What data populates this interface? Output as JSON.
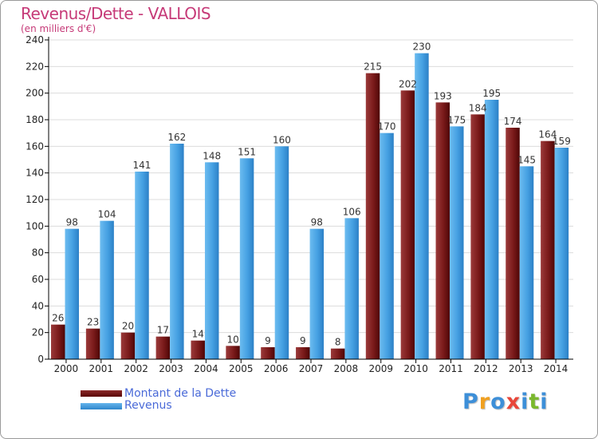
{
  "title": "Revenus/Dette - VALLOIS",
  "subtitle": "(en milliers d'€)",
  "legend": {
    "debt_label": "Montant de la Dette",
    "revenue_label": "Revenus"
  },
  "brand": "Proxiti",
  "colors": {
    "title": "#c63a78",
    "debt": "#7a1a1a",
    "revenue": "#3d98dd",
    "legend_text": "#4a6ad8"
  },
  "chart_data": {
    "type": "bar",
    "categories": [
      "2000",
      "2001",
      "2002",
      "2003",
      "2004",
      "2005",
      "2006",
      "2007",
      "2008",
      "2009",
      "2010",
      "2011",
      "2012",
      "2013",
      "2014"
    ],
    "series": [
      {
        "name": "Montant de la Dette",
        "values": [
          26,
          23,
          20,
          17,
          14,
          10,
          9,
          9,
          8,
          215,
          202,
          193,
          184,
          174,
          164
        ]
      },
      {
        "name": "Revenus",
        "values": [
          98,
          104,
          141,
          162,
          148,
          151,
          160,
          98,
          106,
          170,
          230,
          175,
          195,
          145,
          159
        ]
      }
    ],
    "title": "Revenus/Dette - VALLOIS",
    "ylabel": "(en milliers d'€)",
    "ylim": [
      0,
      240
    ],
    "yticks": [
      0,
      20,
      40,
      60,
      80,
      100,
      120,
      140,
      160,
      180,
      200,
      220,
      240
    ],
    "grid": true,
    "legend_position": "bottom-left"
  }
}
